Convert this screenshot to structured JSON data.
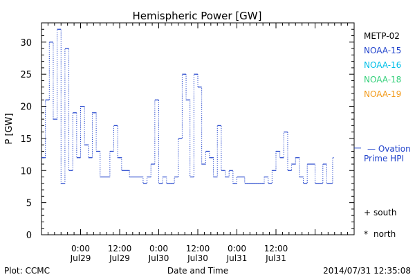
{
  "chart_data": {
    "type": "line",
    "title": "Hemispheric Power [GW]",
    "ylabel": "P [GW]",
    "xlabel": "Date and Time",
    "ylim": [
      0,
      33
    ],
    "xlim_hours": [
      0,
      96
    ],
    "yticks": [
      0,
      5,
      10,
      15,
      20,
      25,
      30
    ],
    "xticks": [
      {
        "h": 15,
        "time": "0:00",
        "date": "Jul29"
      },
      {
        "h": 35,
        "time": "12:00",
        "date": "Jul29"
      },
      {
        "h": 55,
        "time": "0:00",
        "date": "Jul30"
      },
      {
        "h": 75,
        "time": "12:00",
        "date": "Jul30"
      },
      {
        "h": 95,
        "time": "0:00",
        "date": "Jul31"
      },
      {
        "h": 115,
        "time": "12:00",
        "date": "Jul31"
      }
    ],
    "series": [
      {
        "name": "NOAA-15",
        "color": "#2244cc",
        "points": [
          [
            0.0,
            12
          ],
          [
            1.2,
            21
          ],
          [
            2.4,
            30
          ],
          [
            3.6,
            18
          ],
          [
            4.8,
            32
          ],
          [
            6.0,
            8
          ],
          [
            7.2,
            29
          ],
          [
            8.4,
            10
          ],
          [
            9.6,
            19
          ],
          [
            10.8,
            12
          ],
          [
            12.0,
            20
          ],
          [
            13.2,
            14
          ],
          [
            14.4,
            12
          ],
          [
            15.6,
            19
          ],
          [
            16.8,
            13
          ],
          [
            18.0,
            9
          ],
          [
            21.0,
            13
          ],
          [
            22.2,
            17
          ],
          [
            23.4,
            12
          ],
          [
            24.6,
            10
          ],
          [
            27.0,
            9
          ],
          [
            31.2,
            8
          ],
          [
            32.4,
            9
          ],
          [
            33.6,
            11
          ],
          [
            34.8,
            21
          ],
          [
            36.0,
            8
          ],
          [
            37.2,
            9
          ],
          [
            38.4,
            8
          ],
          [
            40.8,
            9
          ],
          [
            42.0,
            15
          ],
          [
            43.2,
            25
          ],
          [
            44.4,
            21
          ],
          [
            45.6,
            9
          ],
          [
            46.8,
            25
          ],
          [
            48.0,
            23
          ],
          [
            49.2,
            11
          ],
          [
            50.4,
            13
          ],
          [
            51.6,
            12
          ],
          [
            52.8,
            9
          ],
          [
            54.0,
            17
          ],
          [
            55.2,
            10
          ],
          [
            56.4,
            9
          ],
          [
            57.6,
            10
          ],
          [
            58.8,
            8
          ],
          [
            60.0,
            9
          ],
          [
            62.4,
            8
          ],
          [
            68.4,
            9
          ],
          [
            69.6,
            8
          ],
          [
            70.8,
            10
          ],
          [
            72.0,
            13
          ],
          [
            73.2,
            12
          ],
          [
            74.4,
            16
          ],
          [
            75.6,
            10
          ],
          [
            76.8,
            11
          ],
          [
            78.0,
            12
          ],
          [
            79.2,
            9
          ],
          [
            80.4,
            8
          ],
          [
            81.6,
            11
          ],
          [
            84.0,
            8
          ],
          [
            86.4,
            11
          ],
          [
            87.6,
            8
          ],
          [
            89.4,
            12
          ],
          [
            89.7,
            12
          ]
        ]
      }
    ],
    "legend": [
      {
        "name": "METP-02",
        "color": "#000000"
      },
      {
        "name": "NOAA-15",
        "color": "#2244cc"
      },
      {
        "name": "NOAA-16",
        "color": "#00bfe8"
      },
      {
        "name": "NOAA-18",
        "color": "#33d07a"
      },
      {
        "name": "NOAA-19",
        "color": "#f29a1a"
      }
    ],
    "ovation": {
      "label_line1": "— Ovation",
      "label_line2": "Prime HPI",
      "value": 13.5,
      "color": "#2244cc"
    },
    "markers": [
      {
        "symbol": "+",
        "label": "south"
      },
      {
        "symbol": "*",
        "label": "north"
      }
    ]
  },
  "footer": {
    "plot_credit": "Plot: CCMC",
    "timestamp": "2014/07/31 12:35:08"
  }
}
